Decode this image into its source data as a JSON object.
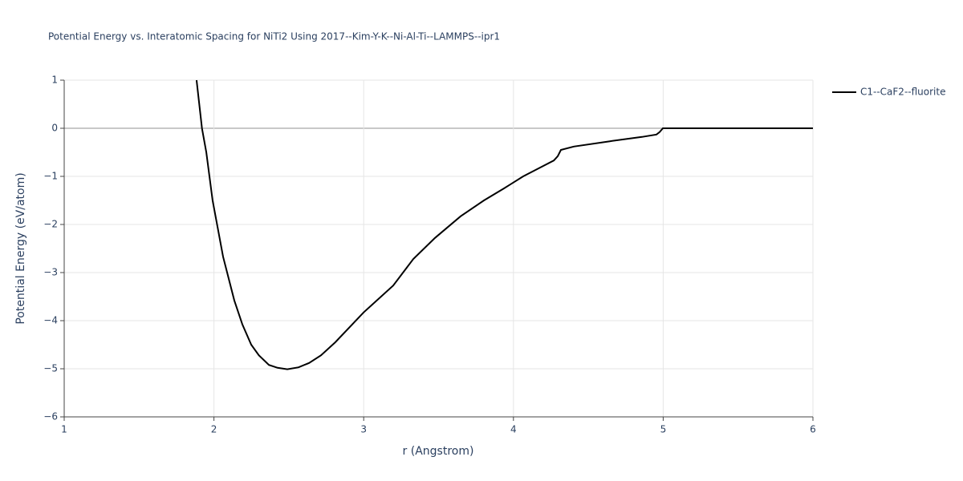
{
  "chart_data": {
    "type": "line",
    "title": "Potential Energy vs. Interatomic Spacing for NiTi2 Using 2017--Kim-Y-K--Ni-Al-Ti--LAMMPS--ipr1",
    "x_label": "r (Angstrom)",
    "y_label": "Potential Energy (eV/atom)",
    "xlim": [
      1,
      6
    ],
    "ylim": [
      -6,
      1
    ],
    "xticks": [
      1,
      2,
      3,
      4,
      5,
      6
    ],
    "yticks": [
      {
        "value": -6,
        "label": "−6"
      },
      {
        "value": -5,
        "label": "−5"
      },
      {
        "value": -4,
        "label": "−4"
      },
      {
        "value": -3,
        "label": "−3"
      },
      {
        "value": -2,
        "label": "−2"
      },
      {
        "value": -1,
        "label": "−1"
      },
      0,
      1
    ],
    "grid": true,
    "legend": "outside-top-right",
    "series": [
      {
        "name": "C1--CaF2--fluorite",
        "color": "#000000",
        "x": [
          1.884,
          1.92,
          1.949,
          1.991,
          2.061,
          2.136,
          2.19,
          2.249,
          2.3,
          2.367,
          2.425,
          2.49,
          2.565,
          2.635,
          2.715,
          2.81,
          2.999,
          3.197,
          3.331,
          3.476,
          3.647,
          3.803,
          3.937,
          4.065,
          4.189,
          4.27,
          4.296,
          4.317,
          4.403,
          4.644,
          4.858,
          4.955,
          4.976,
          4.998,
          6.0
        ],
        "values": [
          1,
          0,
          -0.5,
          -1.5,
          -2.67,
          -3.58,
          -4.08,
          -4.5,
          -4.72,
          -4.92,
          -4.98,
          -5.01,
          -4.97,
          -4.88,
          -4.72,
          -4.45,
          -3.83,
          -3.27,
          -2.72,
          -2.28,
          -1.83,
          -1.5,
          -1.25,
          -1.0,
          -0.8,
          -0.67,
          -0.58,
          -0.45,
          -0.38,
          -0.27,
          -0.18,
          -0.13,
          -0.08,
          0,
          0
        ]
      }
    ]
  }
}
